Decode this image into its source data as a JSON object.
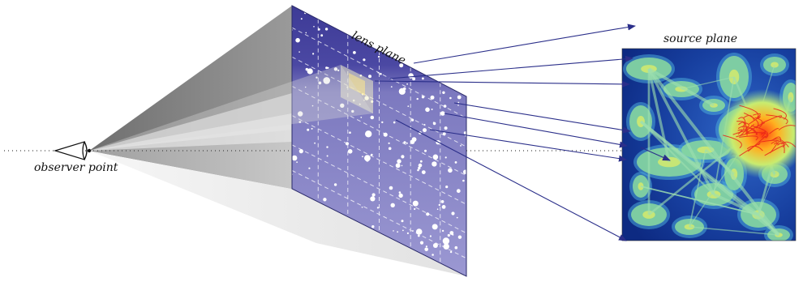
{
  "labels": {
    "observer": "observer point",
    "lens_plane": "lens plane",
    "source_plane": "source plane"
  },
  "colors": {
    "lens_dark": "#3f3c98",
    "lens_light": "#8b88c8",
    "ray": "#2b2f8a",
    "cone_dark": "#8a8a8a",
    "cone_light": "#c9c9c9",
    "source_bg": "#153a9c",
    "source_mid": "#7fd39a",
    "source_hot": "#e8231a"
  }
}
